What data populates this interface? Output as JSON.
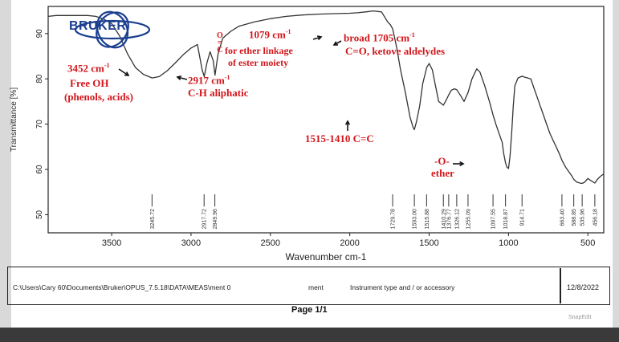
{
  "logo": {
    "text": "BRUKER"
  },
  "chart_data": {
    "type": "line",
    "xlabel": "Wavenumber cm-1",
    "ylabel": "Transmittance [%]",
    "xlim": [
      3900,
      400
    ],
    "ylim": [
      46,
      96
    ],
    "x_reversed": true,
    "x_ticks": [
      3500,
      3000,
      2500,
      2000,
      1500,
      1000,
      500
    ],
    "y_ticks": [
      50,
      60,
      70,
      80,
      90
    ],
    "grid": false,
    "series": [
      {
        "color": "#333333",
        "x": [
          3900,
          3850,
          3800,
          3750,
          3700,
          3650,
          3600,
          3550,
          3500,
          3450,
          3400,
          3350,
          3300,
          3245,
          3200,
          3150,
          3100,
          3050,
          3000,
          2960,
          2930,
          2917,
          2900,
          2880,
          2860,
          2849,
          2830,
          2800,
          2750,
          2700,
          2600,
          2500,
          2400,
          2300,
          2200,
          2100,
          2000,
          1950,
          1900,
          1850,
          1800,
          1760,
          1745,
          1729,
          1705,
          1680,
          1650,
          1620,
          1600,
          1593,
          1580,
          1560,
          1540,
          1515,
          1500,
          1480,
          1460,
          1440,
          1410,
          1390,
          1376,
          1360,
          1340,
          1326,
          1300,
          1280,
          1255,
          1230,
          1200,
          1180,
          1150,
          1120,
          1097,
          1080,
          1060,
          1040,
          1030,
          1019,
          1010,
          1000,
          990,
          980,
          970,
          960,
          940,
          914,
          900,
          880,
          860,
          840,
          820,
          800,
          780,
          760,
          740,
          720,
          700,
          680,
          663,
          640,
          620,
          600,
          589,
          570,
          550,
          536,
          520,
          500,
          480,
          456,
          440,
          420,
          400
        ],
        "y": [
          93.8,
          94.0,
          94.0,
          94.0,
          94.0,
          94.0,
          93.8,
          93.2,
          92.2,
          89.5,
          85.5,
          82.5,
          81.0,
          80.2,
          80.5,
          81.8,
          83.5,
          85.3,
          86.8,
          87.6,
          82.0,
          80.5,
          83.5,
          86.0,
          84.0,
          80.8,
          85.5,
          89.0,
          90.5,
          91.6,
          92.6,
          93.3,
          93.8,
          94.1,
          94.3,
          94.4,
          94.5,
          94.6,
          94.8,
          95.0,
          94.8,
          92.5,
          92.0,
          91.0,
          87.0,
          82.0,
          77.0,
          71.5,
          69.2,
          68.8,
          70.5,
          74.0,
          79.0,
          82.5,
          83.4,
          82.0,
          78.5,
          75.0,
          74.2,
          75.5,
          76.5,
          77.5,
          77.8,
          77.6,
          76.2,
          75.0,
          77.0,
          80.0,
          82.2,
          81.5,
          78.5,
          75.0,
          72.0,
          70.0,
          68.0,
          66.0,
          63.5,
          61.5,
          60.5,
          60.2,
          63.0,
          68.0,
          74.0,
          78.5,
          80.2,
          80.6,
          80.4,
          80.2,
          80.0,
          78.0,
          76.0,
          74.0,
          72.0,
          70.0,
          68.0,
          66.5,
          65.0,
          63.5,
          62.0,
          60.5,
          59.5,
          58.5,
          57.8,
          57.2,
          57.0,
          56.9,
          57.2,
          58.0,
          57.5,
          57.0,
          57.8,
          58.5,
          59.0
        ]
      }
    ],
    "peak_labels": [
      {
        "x": 3245.72,
        "label": "3245.72"
      },
      {
        "x": 2917.72,
        "label": "2917.72"
      },
      {
        "x": 2849.96,
        "label": "2849.96"
      },
      {
        "x": 1729.78,
        "label": "1729.78"
      },
      {
        "x": 1593.0,
        "label": "1593.00"
      },
      {
        "x": 1515.88,
        "label": "1515.88"
      },
      {
        "x": 1410.29,
        "label": "1410.29"
      },
      {
        "x": 1376.77,
        "label": "1376.77"
      },
      {
        "x": 1326.12,
        "label": "1326.12"
      },
      {
        "x": 1255.09,
        "label": "1255.09"
      },
      {
        "x": 1097.55,
        "label": "1097.55"
      },
      {
        "x": 1018.87,
        "label": "1018.87"
      },
      {
        "x": 914.71,
        "label": "914.71"
      },
      {
        "x": 663.4,
        "label": "663.40"
      },
      {
        "x": 588.85,
        "label": "588.85"
      },
      {
        "x": 535.96,
        "label": "535.96"
      },
      {
        "x": 456.18,
        "label": "456.18"
      }
    ],
    "annotations": [
      {
        "lines": [
          "3452 cm",
          "Free OH",
          "(phenols, acids)"
        ],
        "sup": "-1"
      },
      {
        "lines": [
          "2917 cm",
          "C-H aliphatic"
        ],
        "sup": "-1"
      },
      {
        "lines": [
          "1079 cm"
        ],
        "sup": "-1"
      },
      {
        "lines": [
          "for ether linkage",
          "of ester moiety"
        ],
        "glyph": "O=C"
      },
      {
        "lines": [
          "broad 1705 cm",
          "C=O, ketove aldelydes"
        ],
        "sup": "-1"
      },
      {
        "lines": [
          "1515-1410 C=C"
        ]
      },
      {
        "lines": [
          "-O-",
          "ether"
        ]
      }
    ]
  },
  "footer": {
    "path": "C:\\Users\\Cary 60\\Documents\\Bruker\\OPUS_7.5.18\\DATA\\MEAS\\ment 0",
    "sample": "ment",
    "instrument": "Instrument type and / or accessory",
    "date": "12/8/2022"
  },
  "page": {
    "label": "Page 1/1"
  },
  "watermark": {
    "text": "SnapEdit"
  }
}
